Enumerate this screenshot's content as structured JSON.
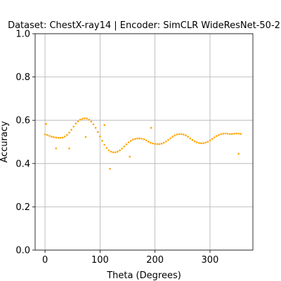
{
  "chart_data": {
    "type": "scatter",
    "title": "Dataset: ChestX-ray14 | Encoder: SimCLR WideResNet-50-2",
    "xlabel": "Theta (Degrees)",
    "ylabel": "Accuracy",
    "xlim": [
      -18,
      378
    ],
    "ylim": [
      0.0,
      1.0
    ],
    "xticks": [
      0,
      100,
      200,
      300
    ],
    "yticks": [
      0.0,
      0.2,
      0.4,
      0.6,
      0.8,
      1.0
    ],
    "xtick_labels": [
      "0",
      "100",
      "200",
      "300"
    ],
    "ytick_labels": [
      "0.0",
      "0.2",
      "0.4",
      "0.6",
      "0.8",
      "1.0"
    ],
    "grid": true,
    "legend": "none",
    "series": [
      {
        "color": "#ffa500",
        "x": [
          0,
          4,
          8,
          12,
          16,
          20,
          24,
          28,
          32,
          36,
          40,
          44,
          48,
          52,
          56,
          60,
          64,
          68,
          72,
          76,
          80,
          84,
          88,
          92,
          96,
          100,
          104,
          108,
          112,
          116,
          120,
          124,
          128,
          132,
          136,
          140,
          144,
          148,
          152,
          156,
          160,
          164,
          168,
          172,
          176,
          180,
          184,
          188,
          192,
          196,
          200,
          204,
          208,
          212,
          216,
          220,
          224,
          228,
          232,
          236,
          240,
          244,
          248,
          252,
          256,
          260,
          264,
          268,
          272,
          276,
          280,
          284,
          288,
          292,
          296,
          300,
          304,
          308,
          312,
          316,
          320,
          324,
          328,
          332,
          336,
          340,
          344,
          348,
          352,
          356,
          2,
          20,
          44,
          74,
          108,
          118,
          154,
          193,
          352
        ],
        "y": [
          0.535,
          0.532,
          0.528,
          0.524,
          0.522,
          0.52,
          0.519,
          0.519,
          0.52,
          0.525,
          0.532,
          0.543,
          0.556,
          0.571,
          0.585,
          0.595,
          0.603,
          0.607,
          0.609,
          0.608,
          0.603,
          0.594,
          0.581,
          0.565,
          0.546,
          0.525,
          0.505,
          0.487,
          0.472,
          0.461,
          0.455,
          0.452,
          0.452,
          0.455,
          0.461,
          0.469,
          0.479,
          0.489,
          0.498,
          0.505,
          0.511,
          0.514,
          0.516,
          0.516,
          0.515,
          0.512,
          0.507,
          0.501,
          0.496,
          0.493,
          0.491,
          0.49,
          0.49,
          0.492,
          0.496,
          0.502,
          0.509,
          0.517,
          0.524,
          0.53,
          0.534,
          0.536,
          0.536,
          0.534,
          0.53,
          0.524,
          0.516,
          0.509,
          0.503,
          0.498,
          0.495,
          0.494,
          0.494,
          0.497,
          0.501,
          0.507,
          0.514,
          0.521,
          0.527,
          0.532,
          0.536,
          0.538,
          0.539,
          0.538,
          0.536,
          0.537,
          0.538,
          0.539,
          0.538,
          0.537,
          0.583,
          0.47,
          0.47,
          0.523,
          0.578,
          0.376,
          0.432,
          0.565,
          0.445
        ]
      }
    ]
  }
}
